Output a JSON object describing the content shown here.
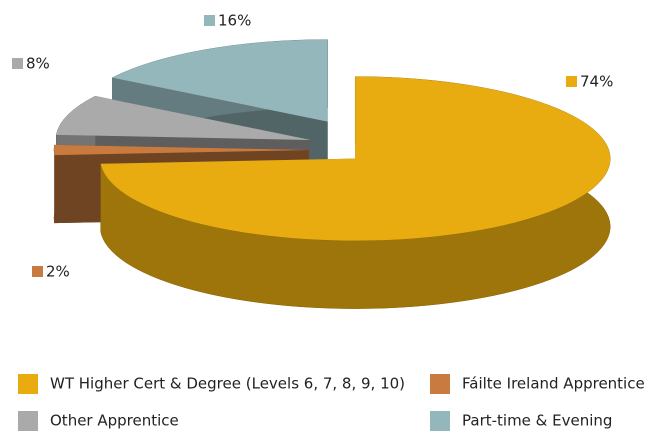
{
  "chart_data": {
    "type": "pie",
    "categories": [
      "WT Higher Cert & Degree (Levels 6, 7, 8, 9, 10)",
      "Fáilte Ireland Apprentice",
      "Other Apprentice",
      "Part-time & Evening"
    ],
    "values": [
      74,
      2,
      8,
      16
    ],
    "value_labels": [
      "74%",
      "2%",
      "8%",
      "16%"
    ],
    "colors": [
      "#e8ac10",
      "#c97b3f",
      "#aaaaaa",
      "#93b7bb"
    ]
  }
}
